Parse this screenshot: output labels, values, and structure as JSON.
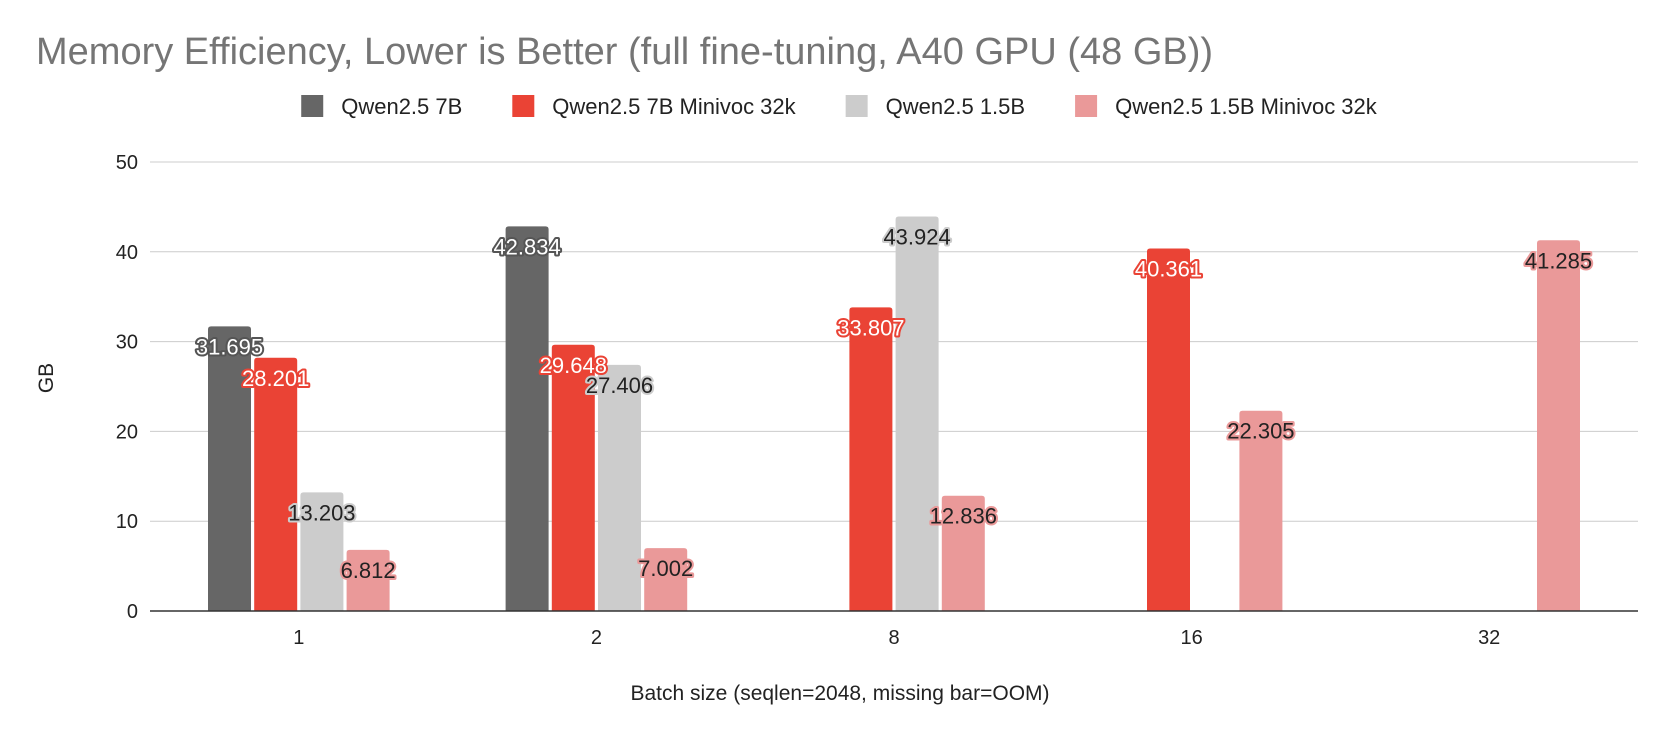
{
  "chart_data": {
    "type": "bar",
    "title": "Memory Efficiency, Lower is Better (full fine-tuning, A40 GPU (48 GB))",
    "xlabel": "Batch size (seqlen=2048, missing bar=OOM)",
    "ylabel": "GB",
    "ylim": [
      0,
      50
    ],
    "yticks": [
      "0",
      "10",
      "20",
      "30",
      "40",
      "50"
    ],
    "categories": [
      "1",
      "2",
      "8",
      "16",
      "32"
    ],
    "grid": true,
    "legend_position": "top",
    "series": [
      {
        "name": "Qwen2.5 7B",
        "color": "#666666",
        "labelFill": "#ffffff",
        "labelStroke": "#555555",
        "values": [
          31.695,
          42.834,
          null,
          null,
          null
        ],
        "labels": [
          "31.695",
          "42.834",
          null,
          null,
          null
        ]
      },
      {
        "name": "Qwen2.5 7B Minivoc 32k",
        "color": "#ea4335",
        "labelFill": "#ffffff",
        "labelStroke": "#ea4335",
        "values": [
          28.201,
          29.648,
          33.807,
          40.361,
          null
        ],
        "labels": [
          "28.201",
          "29.648",
          "33.807",
          "40.361",
          null
        ]
      },
      {
        "name": "Qwen2.5 1.5B",
        "color": "#cccccc",
        "labelFill": "#222222",
        "labelStroke": "#cccccc",
        "values": [
          13.203,
          27.406,
          43.924,
          null,
          null
        ],
        "labels": [
          "13.203",
          "27.406",
          "43.924",
          null,
          null
        ]
      },
      {
        "name": "Qwen2.5 1.5B Minivoc 32k",
        "color": "#ea9999",
        "labelFill": "#222222",
        "labelStroke": "#ea9999",
        "values": [
          6.812,
          7.002,
          12.836,
          22.305,
          41.285
        ],
        "labels": [
          "6.812",
          "7.002",
          "12.836",
          "22.305",
          "41.285"
        ]
      }
    ]
  }
}
